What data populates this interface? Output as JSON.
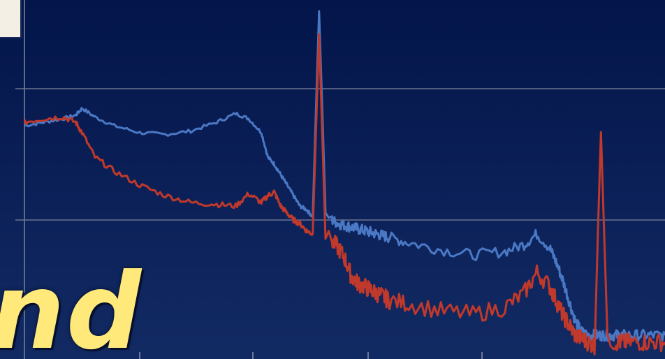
{
  "chart_data": {
    "type": "line",
    "title": "",
    "xlabel": "",
    "ylabel": "",
    "x_range": [
      0,
      100
    ],
    "y_range": [
      0,
      100
    ],
    "grid": true,
    "x": [
      0,
      3,
      6,
      8,
      9,
      11,
      14,
      18,
      22,
      26,
      30,
      33,
      35,
      37,
      38,
      39,
      40,
      41,
      42,
      43,
      44,
      45,
      46,
      47,
      48,
      49,
      50,
      51,
      52,
      53,
      54,
      55,
      56,
      57,
      60,
      65,
      70,
      75,
      78,
      80,
      82,
      83,
      84,
      85,
      86,
      87,
      88,
      89,
      90,
      91,
      92,
      93,
      94,
      96,
      98,
      100
    ],
    "series": [
      {
        "color": "#4a78c4",
        "values": [
          66,
          67,
          68,
          69,
          71,
          68.5,
          66,
          64,
          63.5,
          64.5,
          67,
          69.5,
          68,
          64,
          57,
          55,
          52,
          49,
          46,
          43,
          42,
          40,
          99,
          41,
          39,
          38,
          37.5,
          37,
          36.5,
          36,
          35.5,
          35,
          34.5,
          34,
          32.5,
          30.5,
          29,
          30,
          32,
          35,
          31,
          27,
          22,
          16,
          10,
          7,
          6,
          6,
          6,
          6,
          6,
          6,
          6,
          6,
          6,
          6
        ]
      },
      {
        "color": "#c0392b",
        "values": [
          67,
          68,
          68.5,
          67,
          64,
          57,
          53,
          49,
          46,
          44,
          43.5,
          43,
          46.5,
          44,
          46,
          47,
          43,
          41,
          39,
          38,
          36,
          35,
          93,
          34,
          33,
          31,
          28,
          23,
          21,
          20,
          19,
          18,
          17,
          16,
          15,
          13,
          12,
          14,
          18,
          24,
          20,
          16,
          12,
          9,
          6,
          5,
          4,
          3,
          66,
          4,
          4,
          4,
          4,
          4,
          4,
          4
        ]
      }
    ]
  },
  "overlay": {
    "text": "nd"
  }
}
